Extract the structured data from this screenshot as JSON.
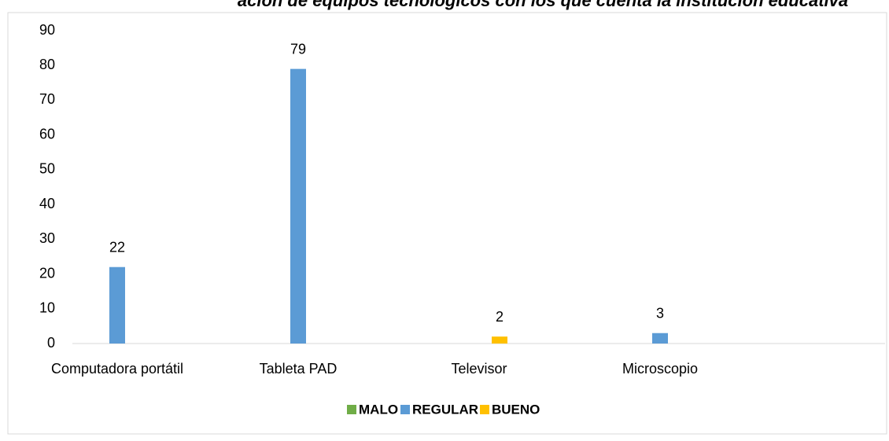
{
  "chart_data": {
    "type": "bar",
    "title": "ación de equipos tecnológicos con los que cuenta la institución educativa",
    "categories": [
      "Computadora portátil",
      "Tableta PAD",
      "Televisor",
      "Microscopio"
    ],
    "series": [
      {
        "name": "MALO",
        "color": "#70ad47",
        "values": [
          null,
          null,
          null,
          null
        ]
      },
      {
        "name": "REGULAR",
        "color": "#5b9bd5",
        "values": [
          22,
          79,
          null,
          3
        ]
      },
      {
        "name": "BUENO",
        "color": "#ffc000",
        "values": [
          null,
          null,
          2,
          null
        ]
      }
    ],
    "ylim": [
      0,
      90
    ],
    "yticks": [
      0,
      10,
      20,
      30,
      40,
      50,
      60,
      70,
      80,
      90
    ],
    "grid": false,
    "legend": "bottom"
  }
}
